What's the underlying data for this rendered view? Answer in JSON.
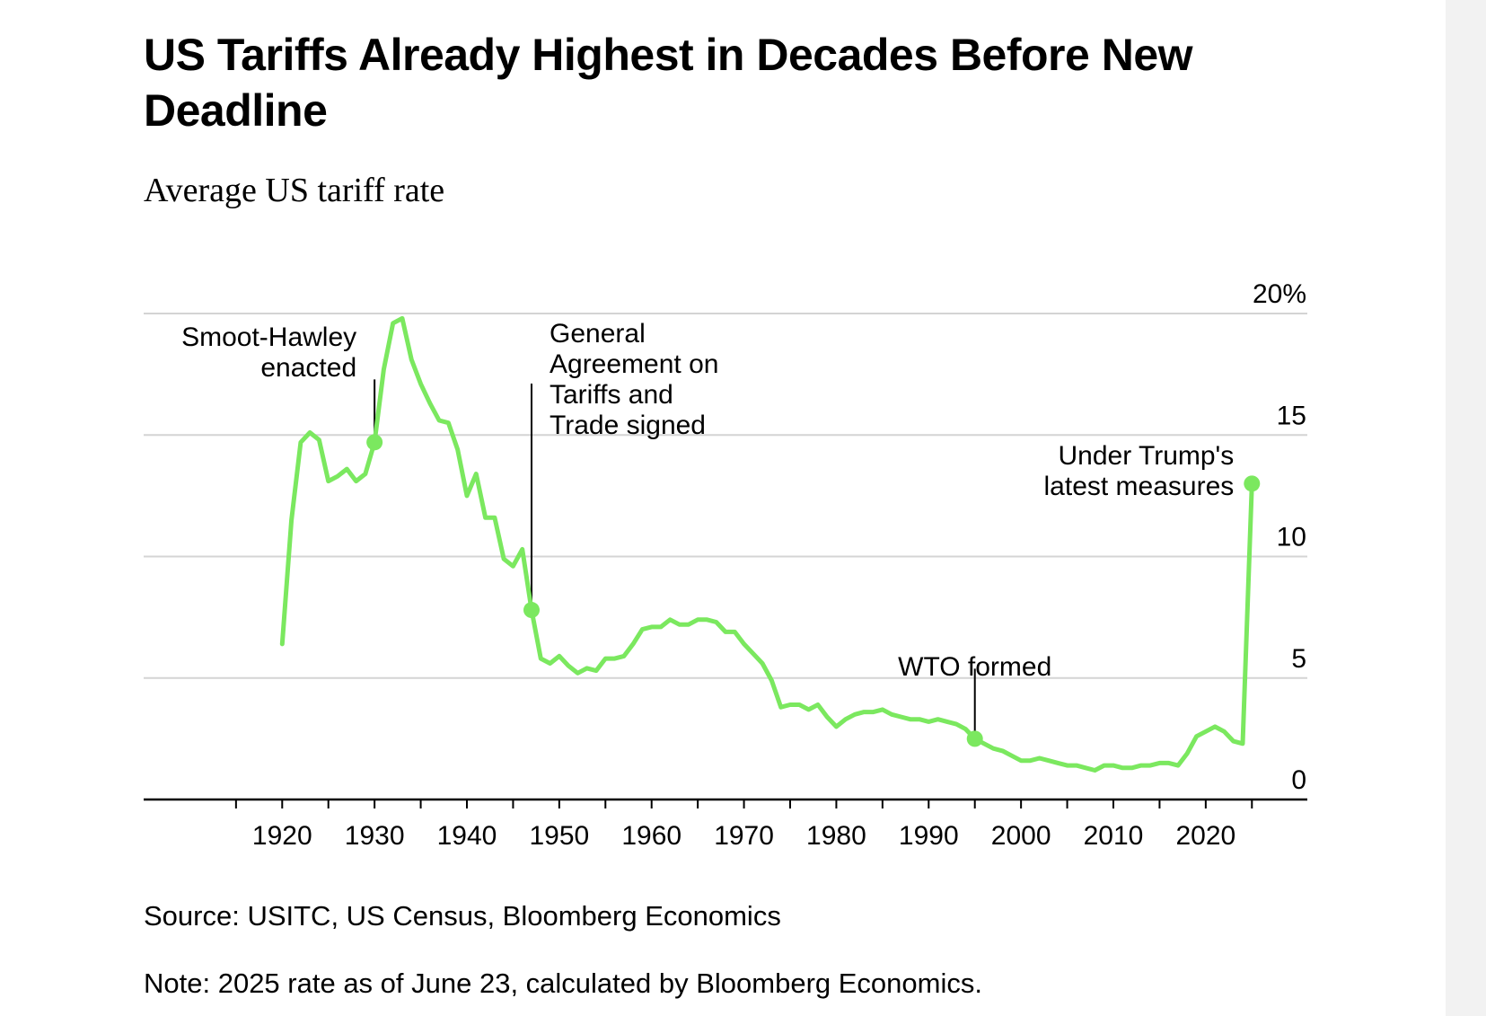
{
  "header": {
    "title": "US Tariffs Already Highest in Decades Before New Deadline",
    "subtitle": "Average US tariff rate"
  },
  "footer": {
    "source": "Source: USITC, US Census, Bloomberg Economics",
    "note": "Note: 2025 rate as of June 23, calculated by Bloomberg Economics."
  },
  "colors": {
    "line": "#7be85f",
    "grid": "#d4d4d4",
    "axis": "#000000",
    "background": "#ffffff",
    "strip": "#f2f2f2"
  },
  "chart_data": {
    "type": "line",
    "title": "US Tariffs Already Highest in Decades Before New Deadline",
    "subtitle": "Average US tariff rate",
    "xlim": [
      1905,
      2031
    ],
    "ylim": [
      0,
      20
    ],
    "grid": true,
    "y_ticks": [
      {
        "value": 0,
        "label": "0"
      },
      {
        "value": 5,
        "label": "5"
      },
      {
        "value": 10,
        "label": "10"
      },
      {
        "value": 15,
        "label": "15"
      },
      {
        "value": 20,
        "label": "20%"
      }
    ],
    "x_ticks": [
      1920,
      1930,
      1940,
      1950,
      1960,
      1970,
      1980,
      1990,
      2000,
      2010,
      2020
    ],
    "x_tick_labels": [
      "1920",
      "1930",
      "1940",
      "1950",
      "1960",
      "1970",
      "1980",
      "1990",
      "2000",
      "2010",
      "2020"
    ],
    "x": [
      1920,
      1921,
      1922,
      1923,
      1924,
      1925,
      1926,
      1927,
      1928,
      1929,
      1930,
      1931,
      1932,
      1933,
      1934,
      1935,
      1936,
      1937,
      1938,
      1939,
      1940,
      1941,
      1942,
      1943,
      1944,
      1945,
      1946,
      1947,
      1948,
      1949,
      1950,
      1951,
      1952,
      1953,
      1954,
      1955,
      1956,
      1957,
      1958,
      1959,
      1960,
      1961,
      1962,
      1963,
      1964,
      1965,
      1966,
      1967,
      1968,
      1969,
      1970,
      1971,
      1972,
      1973,
      1974,
      1975,
      1976,
      1977,
      1978,
      1979,
      1980,
      1981,
      1982,
      1983,
      1984,
      1985,
      1986,
      1987,
      1988,
      1989,
      1990,
      1991,
      1992,
      1993,
      1994,
      1995,
      1996,
      1997,
      1998,
      1999,
      2000,
      2001,
      2002,
      2003,
      2004,
      2005,
      2006,
      2007,
      2008,
      2009,
      2010,
      2011,
      2012,
      2013,
      2014,
      2015,
      2016,
      2017,
      2018,
      2019,
      2020,
      2021,
      2022,
      2023,
      2024,
      2025
    ],
    "series": [
      {
        "values": [
          6.4,
          11.5,
          14.7,
          15.1,
          14.8,
          13.1,
          13.3,
          13.6,
          13.1,
          13.4,
          14.7,
          17.7,
          19.6,
          19.8,
          18.1,
          17.1,
          16.3,
          15.6,
          15.5,
          14.4,
          12.5,
          13.4,
          11.6,
          11.6,
          9.9,
          9.6,
          10.3,
          7.8,
          5.8,
          5.6,
          5.9,
          5.5,
          5.2,
          5.4,
          5.3,
          5.8,
          5.8,
          5.9,
          6.4,
          7.0,
          7.1,
          7.1,
          7.4,
          7.2,
          7.2,
          7.4,
          7.4,
          7.3,
          6.9,
          6.9,
          6.4,
          6.0,
          5.6,
          4.9,
          3.8,
          3.9,
          3.9,
          3.7,
          3.9,
          3.4,
          3.0,
          3.3,
          3.5,
          3.6,
          3.6,
          3.7,
          3.5,
          3.4,
          3.3,
          3.3,
          3.2,
          3.3,
          3.2,
          3.1,
          2.9,
          2.5,
          2.3,
          2.1,
          2.0,
          1.8,
          1.6,
          1.6,
          1.7,
          1.6,
          1.5,
          1.4,
          1.4,
          1.3,
          1.2,
          1.4,
          1.4,
          1.3,
          1.3,
          1.4,
          1.4,
          1.5,
          1.5,
          1.4,
          1.9,
          2.6,
          2.8,
          3.0,
          2.8,
          2.4,
          2.3,
          13.0
        ]
      }
    ],
    "highlights": [
      {
        "x": 1930,
        "y": 14.7
      },
      {
        "x": 1947,
        "y": 7.8
      },
      {
        "x": 1995,
        "y": 2.5
      },
      {
        "x": 2025,
        "y": 13.0
      }
    ],
    "annotations": [
      {
        "text_lines": [
          "Smoot-Hawley",
          "enacted"
        ],
        "x": 1930,
        "y": 14.7,
        "align": "right"
      },
      {
        "text_lines": [
          "General",
          "Agreement on",
          "Tariffs and",
          "Trade signed"
        ],
        "x": 1947,
        "y": 7.8,
        "align": "left"
      },
      {
        "text_lines": [
          "WTO formed"
        ],
        "x": 1995,
        "y": 2.5,
        "align": "center"
      },
      {
        "text_lines": [
          "Under Trump's",
          "latest measures"
        ],
        "x": 2025,
        "y": 13.0,
        "align": "right"
      }
    ]
  }
}
